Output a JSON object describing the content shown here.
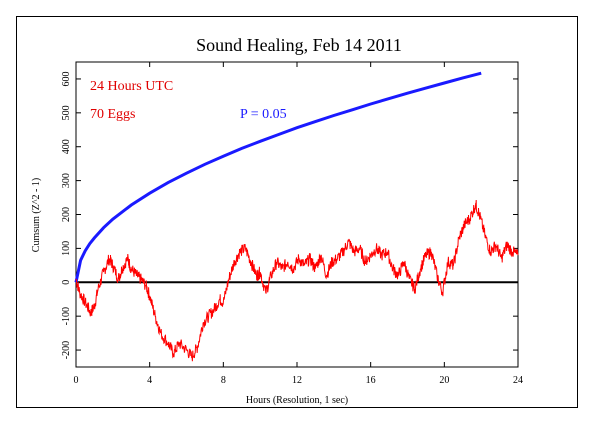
{
  "chart_data": {
    "type": "line",
    "title": "Sound Healing, Feb 14 2011",
    "xlabel": "Hours (Resolution, 1 sec)",
    "ylabel": "Cumsum (Z^2 - 1)",
    "xlim": [
      0,
      24
    ],
    "ylim": [
      -250,
      650
    ],
    "xticks": [
      0,
      4,
      8,
      12,
      16,
      20,
      24
    ],
    "yticks": [
      -200,
      -100,
      0,
      100,
      200,
      300,
      400,
      500,
      600
    ],
    "annotations": {
      "duration": "24 Hours UTC",
      "eggs": "70 Eggs",
      "probability": "P = 0.05"
    },
    "series": [
      {
        "name": "cumsum",
        "color": "#ff0000",
        "x": [
          0,
          0.2,
          0.5,
          0.8,
          1.0,
          1.2,
          1.5,
          1.8,
          2.0,
          2.3,
          2.5,
          2.8,
          3.0,
          3.3,
          3.5,
          3.8,
          4.0,
          4.3,
          4.6,
          5.0,
          5.3,
          5.6,
          6.0,
          6.3,
          6.6,
          6.9,
          7.2,
          7.5,
          7.8,
          8.0,
          8.3,
          8.6,
          8.9,
          9.2,
          9.5,
          9.8,
          10.0,
          10.3,
          10.6,
          10.9,
          11.2,
          11.5,
          11.8,
          12.1,
          12.4,
          12.7,
          13.0,
          13.3,
          13.6,
          13.9,
          14.2,
          14.5,
          14.8,
          15.1,
          15.4,
          15.7,
          16.0,
          16.3,
          16.6,
          16.9,
          17.2,
          17.5,
          17.8,
          18.1,
          18.4,
          18.7,
          19.0,
          19.3,
          19.6,
          19.9,
          20.2,
          20.5,
          20.8,
          21.1,
          21.4,
          21.7,
          21.9,
          22.2,
          22.5,
          22.8,
          23.1,
          23.4,
          23.7,
          24.0
        ],
        "y": [
          10,
          -30,
          -60,
          -90,
          -70,
          -20,
          30,
          70,
          50,
          10,
          40,
          70,
          40,
          20,
          10,
          -10,
          -40,
          -100,
          -150,
          -180,
          -210,
          -180,
          -200,
          -220,
          -190,
          -120,
          -100,
          -80,
          -50,
          -60,
          10,
          60,
          90,
          100,
          60,
          20,
          30,
          -30,
          20,
          60,
          40,
          60,
          40,
          70,
          50,
          70,
          40,
          80,
          20,
          60,
          70,
          90,
          120,
          90,
          100,
          60,
          80,
          100,
          80,
          90,
          40,
          20,
          60,
          10,
          -20,
          40,
          80,
          90,
          20,
          -30,
          60,
          50,
          130,
          170,
          190,
          230,
          200,
          140,
          90,
          110,
          70,
          110,
          90,
          80
        ]
      },
      {
        "name": "P = 0.05",
        "color": "#1a1aff",
        "x": [
          0,
          0.25,
          0.5,
          0.75,
          1,
          1.5,
          2,
          3,
          4,
          5,
          6,
          7,
          8,
          9,
          10,
          11,
          12,
          13,
          14,
          15,
          16,
          17,
          18,
          19,
          20,
          21,
          22
        ],
        "y": [
          0,
          65,
          93,
          114,
          131,
          161,
          186,
          228,
          263,
          294,
          322,
          348,
          372,
          395,
          416,
          436,
          456,
          474,
          492,
          509,
          526,
          542,
          558,
          573,
          588,
          603,
          617
        ]
      }
    ],
    "zero_line": 0,
    "grid": false
  }
}
